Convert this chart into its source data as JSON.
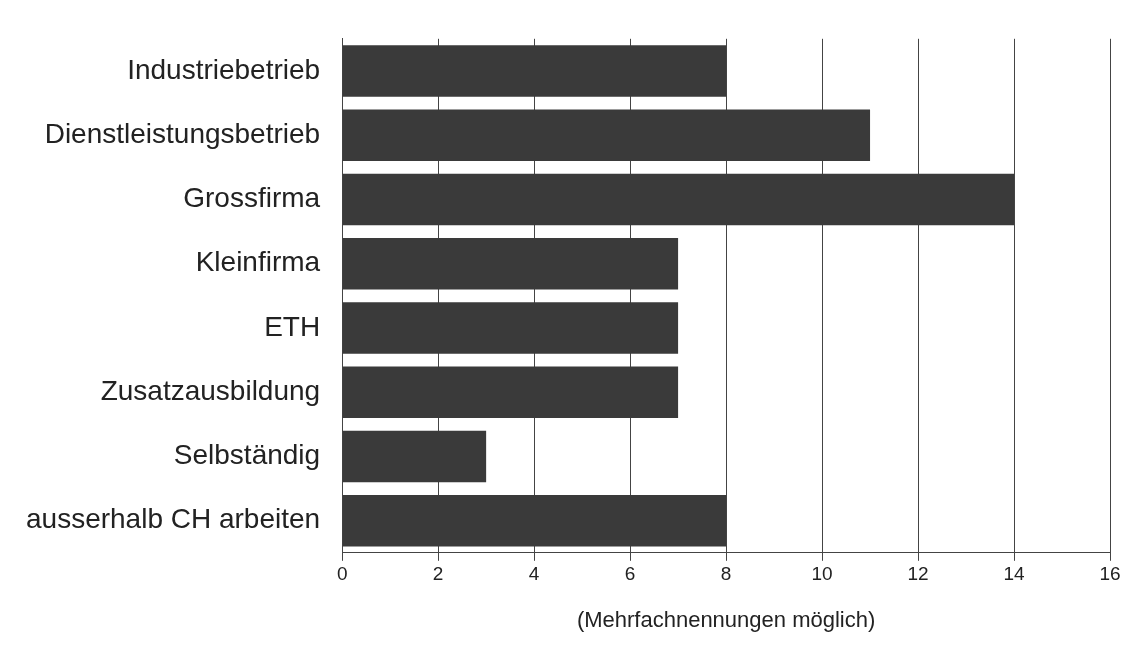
{
  "chart_data": {
    "type": "bar",
    "orientation": "horizontal",
    "categories": [
      "Industriebetrieb",
      "Dienstleistungsbetrieb",
      "Grossfirma",
      "Kleinfirma",
      "ETH",
      "Zusatzausbildung",
      "Selbständig",
      "ausserhalb CH arbeiten"
    ],
    "values": [
      8,
      11,
      14,
      7,
      7,
      7,
      3,
      8
    ],
    "color": "#3a3a3a",
    "xlabel": "(Mehrfachnennungen möglich)",
    "xlim": [
      0,
      16
    ],
    "xticks": [
      0,
      2,
      4,
      6,
      8,
      10,
      12,
      14,
      16
    ],
    "grid": "x",
    "legend": false
  }
}
